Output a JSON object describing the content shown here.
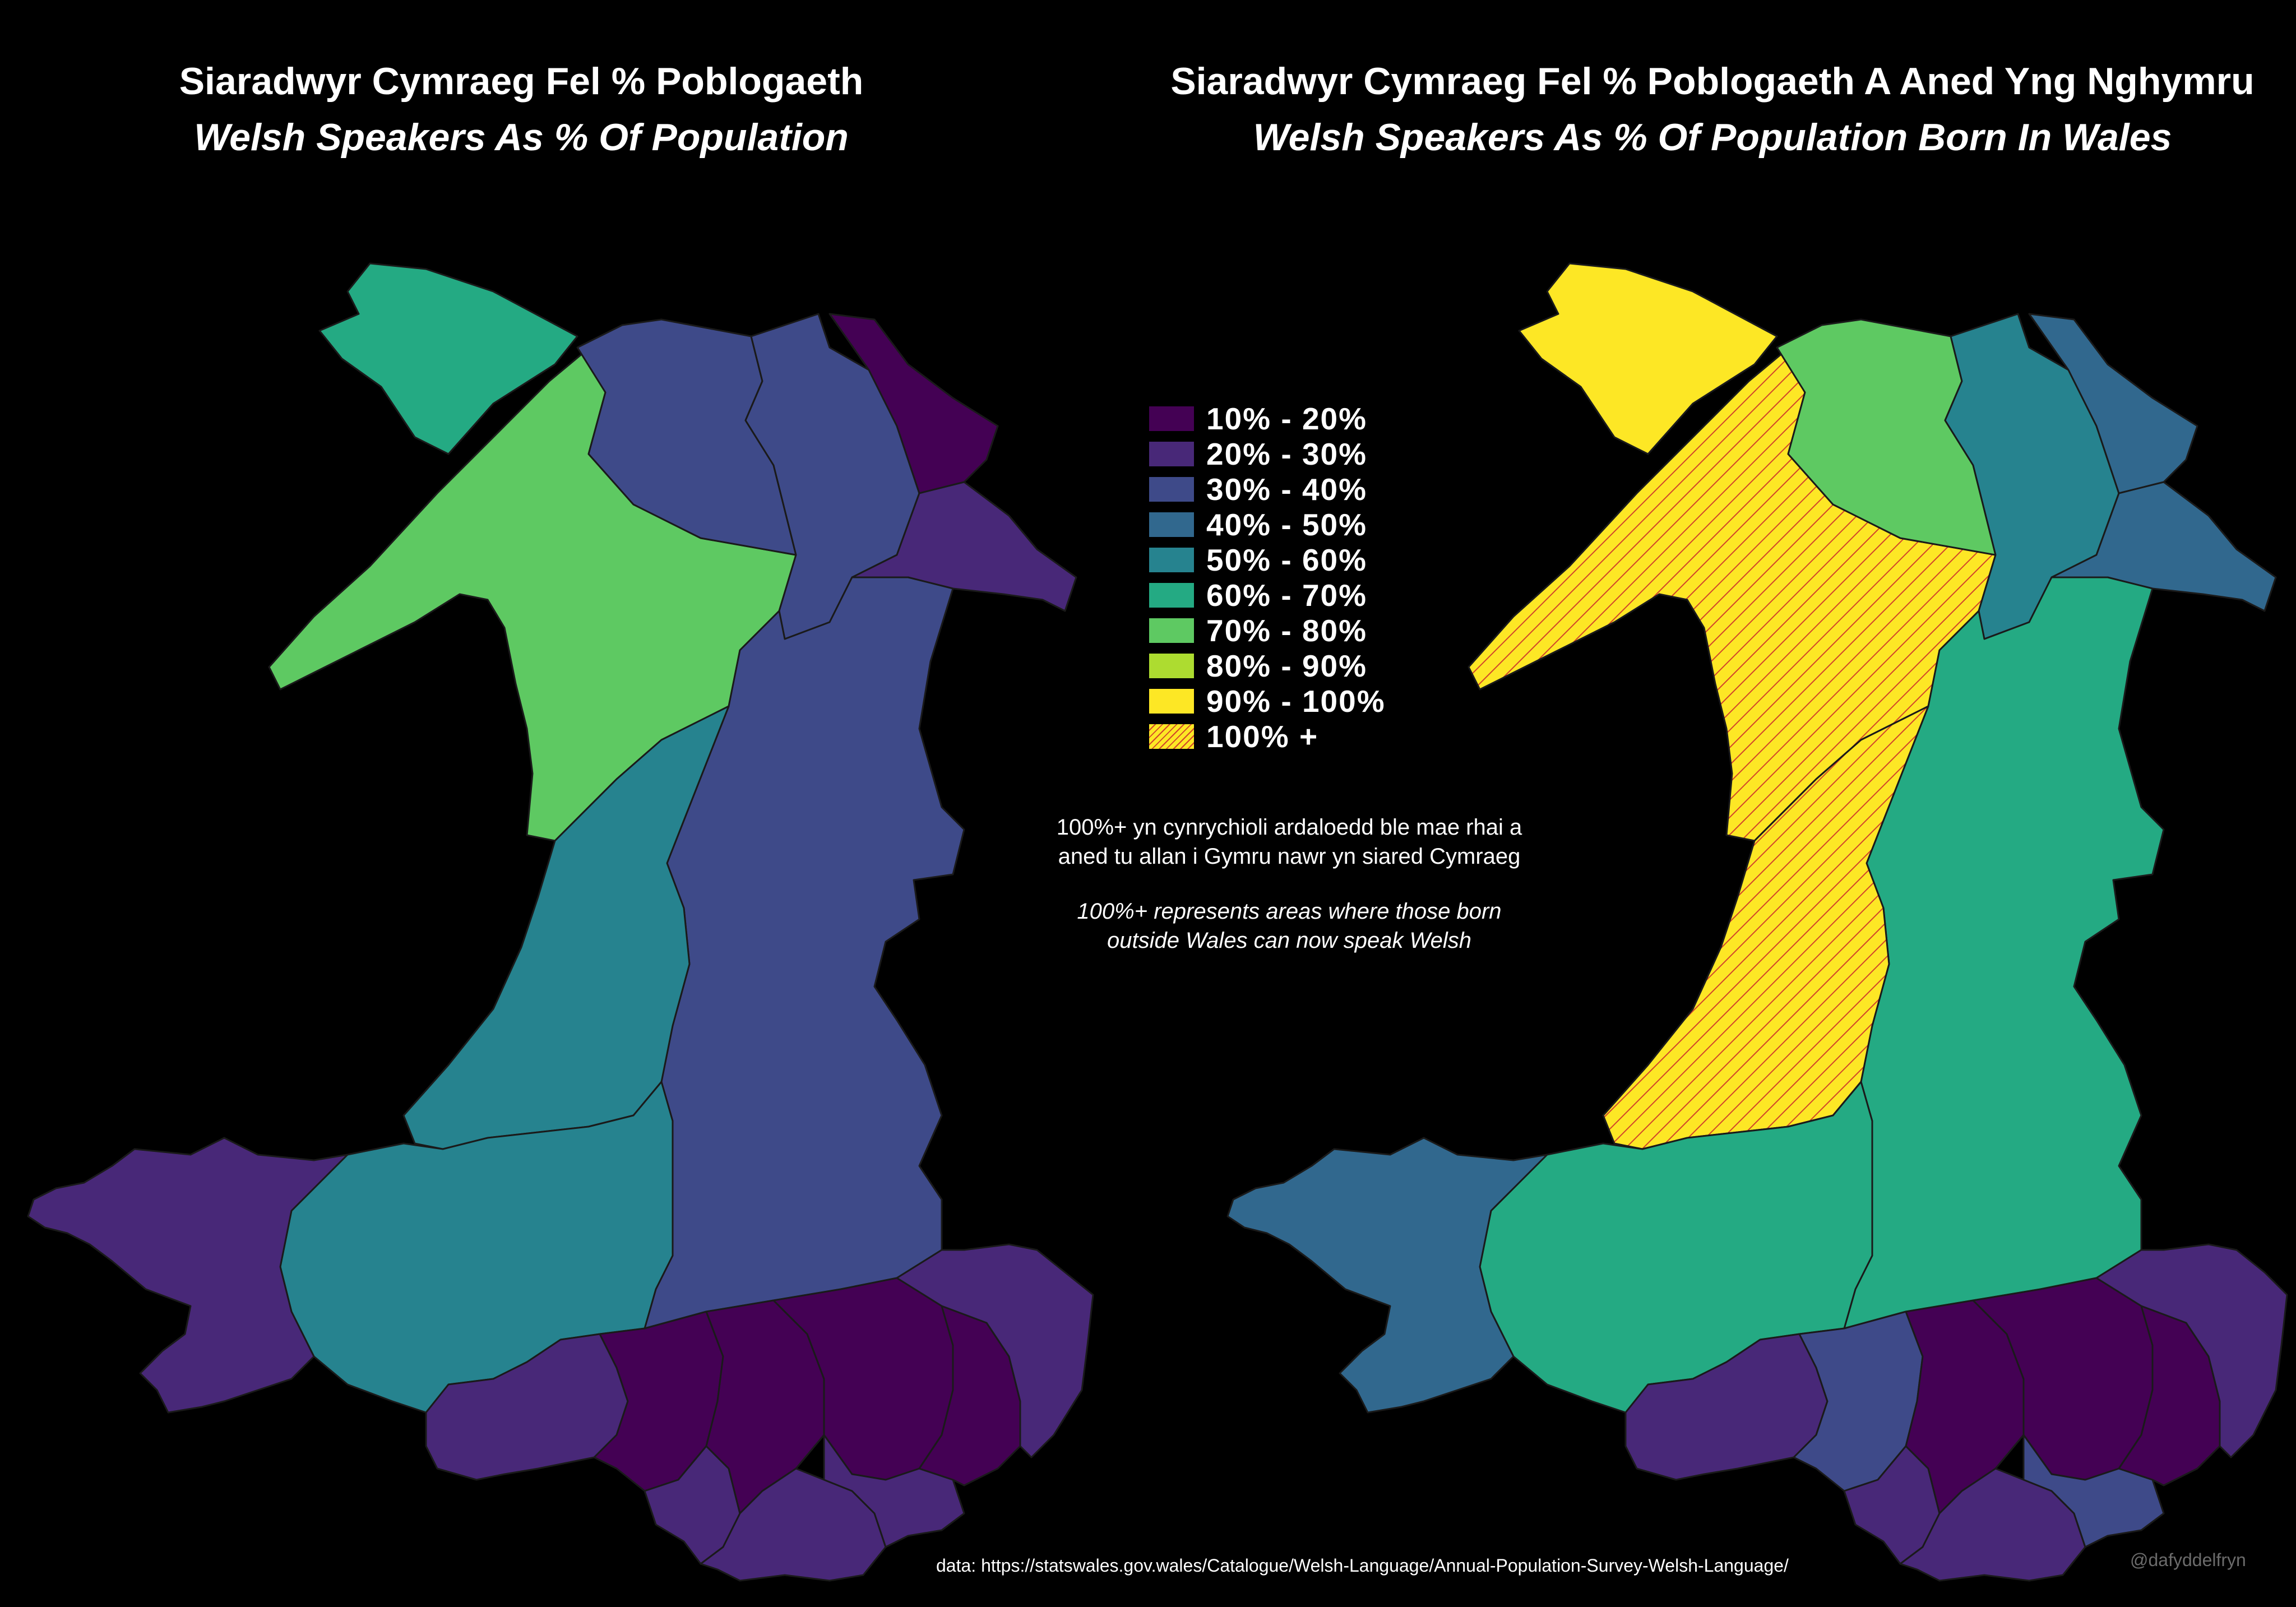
{
  "titles": {
    "left": {
      "welsh": "Siaradwyr Cymraeg Fel % Poblogaeth",
      "english": "Welsh Speakers As % Of Population"
    },
    "right": {
      "welsh": "Siaradwyr Cymraeg Fel % Poblogaeth A Aned Yng Nghymru",
      "english": "Welsh Speakers As % Of Population Born In Wales"
    }
  },
  "legend": [
    {
      "label": "10% - 20%",
      "color": "#440154"
    },
    {
      "label": "20% - 30%",
      "color": "#482878"
    },
    {
      "label": "30% - 40%",
      "color": "#3e4a89"
    },
    {
      "label": "40% - 50%",
      "color": "#31688e"
    },
    {
      "label": "50% - 60%",
      "color": "#26838f"
    },
    {
      "label": "60% - 70%",
      "color": "#24aa83"
    },
    {
      "label": "70% - 80%",
      "color": "#5ec962"
    },
    {
      "label": "80% - 90%",
      "color": "#addc30"
    },
    {
      "label": "90% - 100%",
      "color": "#fde725"
    },
    {
      "label": "100% +",
      "color": "#fde725",
      "pattern": "hatched"
    }
  ],
  "notes": {
    "welsh_line1": "100%+ yn cynrychioli ardaloedd ble mae rhai a",
    "welsh_line2": "aned tu allan i Gymru nawr yn siared Cymraeg",
    "english_line1": "100%+ represents areas where those born",
    "english_line2": "outside Wales can now speak Welsh"
  },
  "source": "data: https://statswales.gov.wales/Catalogue/Welsh-Language/Annual-Population-Survey-Welsh-Language/",
  "credit": "@dafyddelfryn"
}
